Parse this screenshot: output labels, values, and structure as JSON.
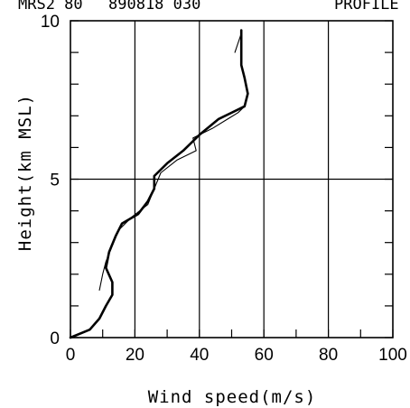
{
  "header": {
    "left": "MRS2 80",
    "middle": "890818 030",
    "right": "PROFILE"
  },
  "chart_data": {
    "type": "line",
    "xlabel": "Wind speed(m/s)",
    "ylabel": "Height(km MSL)",
    "xlim": [
      0,
      100
    ],
    "ylim": [
      0,
      10
    ],
    "xticks": [
      0,
      20,
      40,
      60,
      80,
      100
    ],
    "yticks": [
      0,
      5,
      10
    ],
    "vertical_gridlines": [
      20,
      40,
      60,
      80
    ],
    "horizontal_lines": [
      5
    ],
    "grid": "partial",
    "series": [
      {
        "style": "thick",
        "points": [
          [
            0,
            0
          ],
          [
            6,
            0.25
          ],
          [
            9,
            0.6
          ],
          [
            11,
            1.0
          ],
          [
            13,
            1.35
          ],
          [
            13,
            1.75
          ],
          [
            11,
            2.2
          ],
          [
            12,
            2.7
          ],
          [
            14,
            3.2
          ],
          [
            16,
            3.6
          ],
          [
            21,
            3.9
          ],
          [
            24,
            4.3
          ],
          [
            26,
            4.7
          ],
          [
            26,
            5.1
          ],
          [
            30,
            5.5
          ],
          [
            35,
            5.9
          ],
          [
            40,
            6.4
          ],
          [
            46,
            6.9
          ],
          [
            54,
            7.3
          ],
          [
            55,
            7.7
          ],
          [
            54,
            8.2
          ],
          [
            53,
            8.6
          ],
          [
            53,
            9.2
          ],
          [
            53,
            9.7
          ]
        ]
      },
      {
        "style": "thin",
        "points": [
          [
            9,
            1.5
          ],
          [
            10,
            2.0
          ],
          [
            11,
            2.4
          ],
          [
            13,
            2.9
          ],
          [
            15,
            3.4
          ],
          [
            19,
            3.8
          ],
          [
            24,
            4.2
          ],
          [
            26,
            4.7
          ],
          [
            28,
            5.2
          ],
          [
            33,
            5.6
          ],
          [
            37,
            5.8
          ],
          [
            39,
            5.9
          ],
          [
            38,
            6.3
          ],
          [
            44,
            6.6
          ],
          [
            52,
            7.1
          ],
          [
            54,
            7.3
          ]
        ]
      },
      {
        "style": "thin",
        "points": [
          [
            51,
            9.0
          ],
          [
            53,
            9.6
          ]
        ]
      }
    ]
  }
}
